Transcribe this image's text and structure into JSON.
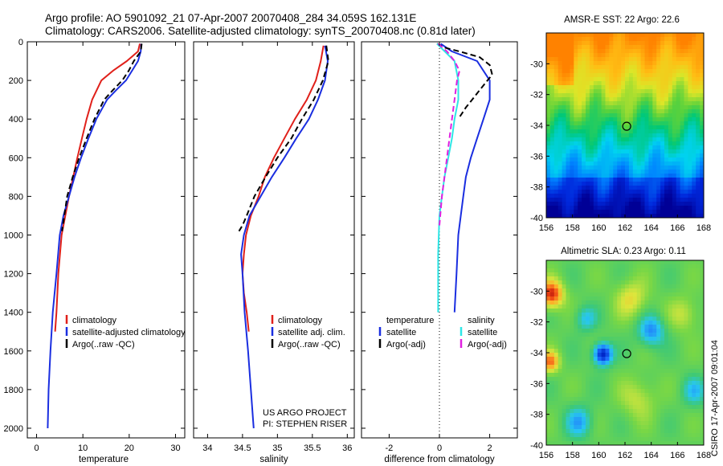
{
  "header": {
    "line1": "Argo profile: AO 5901092_21 07-Apr-2007 20070408_284 34.059S 162.131E",
    "line2": "Climatology: CARS2006. Satellite-adjusted climatology: synTS_20070408.nc (0.81d later)"
  },
  "side_caption": "CSIRO 17-Apr-2007 09:01:04",
  "project_note": [
    "US ARGO PROJECT",
    "PI: STEPHEN RISER"
  ],
  "chart_data": [
    {
      "type": "line",
      "xlabel": "temperature",
      "ylabel": "",
      "xlim": [
        -2,
        32
      ],
      "ylim": [
        2050,
        0
      ],
      "x_ticks": [
        0,
        10,
        20,
        30
      ],
      "y_ticks": [
        0,
        200,
        400,
        600,
        800,
        1000,
        1200,
        1400,
        1600,
        1800,
        2000
      ],
      "grid": false,
      "legend": {
        "placement": "lower-right",
        "entries": [
          "climatology",
          "satellite-adjusted climatology",
          "Argo(..raw -QC)"
        ]
      },
      "series": [
        {
          "name": "climatology",
          "color": "#e0201a",
          "style": "solid",
          "x": [
            22.3,
            21.9,
            19.5,
            16.5,
            14.0,
            12.0,
            10.8,
            9.8,
            8.8,
            7.9,
            7.0,
            6.2,
            5.4,
            4.7,
            4.3,
            4.0
          ],
          "y": [
            10,
            50,
            100,
            150,
            200,
            300,
            400,
            500,
            600,
            700,
            800,
            900,
            1000,
            1200,
            1400,
            1500
          ]
        },
        {
          "name": "satellite-adjusted climatology",
          "color": "#1a2ee0",
          "style": "solid",
          "x": [
            22.6,
            22.5,
            21.9,
            20.6,
            19.3,
            17.2,
            15.2,
            12.9,
            11.2,
            9.6,
            8.2,
            7.0,
            5.8,
            5.0,
            4.3,
            3.5,
            3.0,
            2.6,
            2.4
          ],
          "y": [
            10,
            50,
            100,
            150,
            200,
            250,
            300,
            400,
            500,
            600,
            700,
            800,
            900,
            1000,
            1200,
            1400,
            1600,
            1800,
            2000
          ]
        },
        {
          "name": "Argo(..raw -QC)",
          "color": "#000000",
          "style": "dashed",
          "x": [
            22.7,
            22.5,
            21.0,
            19.9,
            18.5,
            16.5,
            14.6,
            12.5,
            10.8,
            9.2,
            7.8,
            6.6,
            5.5
          ],
          "y": [
            10,
            50,
            100,
            150,
            200,
            250,
            300,
            400,
            500,
            600,
            700,
            800,
            980
          ]
        }
      ]
    },
    {
      "type": "line",
      "xlabel": "salinity",
      "ylabel": "",
      "xlim": [
        33.8,
        36.1
      ],
      "ylim": [
        2050,
        0
      ],
      "x_ticks": [
        34,
        34.5,
        35,
        35.5,
        36
      ],
      "y_ticks": [
        0,
        200,
        400,
        600,
        800,
        1000,
        1200,
        1400,
        1600,
        1800,
        2000
      ],
      "grid": false,
      "legend": {
        "placement": "lower-right",
        "entries": [
          "climatology",
          "satellite adj. clim.",
          "Argo(..raw -QC)"
        ]
      },
      "series": [
        {
          "name": "climatology",
          "color": "#e0201a",
          "style": "solid",
          "x": [
            35.66,
            35.62,
            35.55,
            35.42,
            35.25,
            35.1,
            34.95,
            34.82,
            34.73,
            34.62,
            34.55,
            34.52,
            34.5,
            34.52,
            34.56,
            34.59
          ],
          "y": [
            20,
            100,
            200,
            300,
            400,
            500,
            600,
            700,
            800,
            900,
            1000,
            1100,
            1200,
            1300,
            1400,
            1500
          ]
        },
        {
          "name": "satellite adj. clim.",
          "color": "#1a2ee0",
          "style": "solid",
          "x": [
            35.68,
            35.72,
            35.68,
            35.58,
            35.45,
            35.27,
            35.1,
            34.92,
            34.76,
            34.6,
            34.52,
            34.48,
            34.5,
            34.53,
            34.58,
            34.62,
            34.65,
            34.66
          ],
          "y": [
            20,
            100,
            200,
            300,
            400,
            500,
            600,
            700,
            800,
            900,
            1000,
            1100,
            1200,
            1400,
            1600,
            1800,
            1950,
            2000
          ]
        },
        {
          "name": "Argo(..raw -QC)",
          "color": "#000000",
          "style": "dashed",
          "x": [
            35.7,
            35.73,
            35.65,
            35.52,
            35.35,
            35.2,
            35.0,
            34.83,
            34.67,
            34.56,
            34.5,
            34.45
          ],
          "y": [
            20,
            100,
            200,
            300,
            400,
            500,
            600,
            700,
            800,
            900,
            950,
            980
          ]
        }
      ]
    },
    {
      "type": "line",
      "xlabel": "difference from climatology",
      "ylabel": "",
      "xlim": [
        -3.1,
        3.1
      ],
      "ylim": [
        2050,
        0
      ],
      "x_ticks": [
        -2,
        0,
        2
      ],
      "y_ticks": [
        0,
        200,
        400,
        600,
        800,
        1000,
        1200,
        1400,
        1600,
        1800,
        2000
      ],
      "grid": false,
      "legend": {
        "placement": "lower-right",
        "groups": [
          {
            "heading": "temperature",
            "entries": [
              "satellite",
              "Argo(-adj)"
            ]
          },
          {
            "heading": "salinity",
            "entries": [
              "satellite",
              "Argo(-adj)"
            ]
          }
        ]
      },
      "series": [
        {
          "name": "temperature satellite",
          "color": "#1a2ee0",
          "style": "solid",
          "x": [
            0.05,
            0.5,
            1.5,
            2.0,
            2.0,
            1.75,
            1.5,
            1.25,
            1.05,
            0.95,
            0.85,
            0.75,
            0.68,
            0.6
          ],
          "y": [
            10,
            50,
            100,
            200,
            300,
            400,
            500,
            600,
            700,
            800,
            900,
            1000,
            1200,
            1400
          ]
        },
        {
          "name": "temperature Argo(-adj)",
          "color": "#000000",
          "style": "dashed",
          "x": [
            -0.1,
            0.2,
            0.8,
            1.6,
            2.0,
            2.1,
            1.6,
            1.3,
            1.05,
            0.9,
            0.8
          ],
          "y": [
            10,
            30,
            50,
            80,
            120,
            170,
            250,
            300,
            340,
            370,
            390
          ]
        },
        {
          "name": "salinity satellite",
          "color": "#2ee6e6",
          "style": "solid",
          "x": [
            -0.1,
            0.6,
            0.75,
            0.75,
            0.6,
            0.5,
            0.35,
            0.2,
            0.1,
            0.0,
            -0.05,
            -0.05
          ],
          "y": [
            10,
            100,
            200,
            300,
            400,
            500,
            600,
            700,
            800,
            900,
            1100,
            1400
          ]
        },
        {
          "name": "salinity Argo(-adj)",
          "color": "#e020e0",
          "style": "dashed",
          "x": [
            -0.05,
            0.3,
            0.6,
            0.8,
            0.7,
            0.6,
            0.5,
            0.4,
            0.3,
            0.2,
            0.1,
            0.0
          ],
          "y": [
            10,
            50,
            100,
            150,
            200,
            300,
            400,
            500,
            600,
            700,
            800,
            950
          ]
        }
      ]
    },
    {
      "type": "heatmap",
      "title": "AMSR-E SST: 22 Argo: 22.6",
      "xlim": [
        156,
        168
      ],
      "ylim": [
        -40,
        -28
      ],
      "x_ticks": [
        156,
        158,
        160,
        162,
        164,
        166,
        168
      ],
      "y_ticks": [
        -30,
        -32,
        -34,
        -36,
        -38,
        -40
      ],
      "marker": {
        "x": 162.13,
        "y": -34.06
      }
    },
    {
      "type": "heatmap",
      "title": "Altimetric SLA: 0.23 Argo: 0.11",
      "xlim": [
        156,
        168
      ],
      "ylim": [
        -40,
        -28
      ],
      "x_ticks": [
        156,
        158,
        160,
        162,
        164,
        166,
        168
      ],
      "y_ticks": [
        -30,
        -32,
        -34,
        -36,
        -38,
        -40
      ],
      "marker": {
        "x": 162.13,
        "y": -34.06
      }
    }
  ]
}
